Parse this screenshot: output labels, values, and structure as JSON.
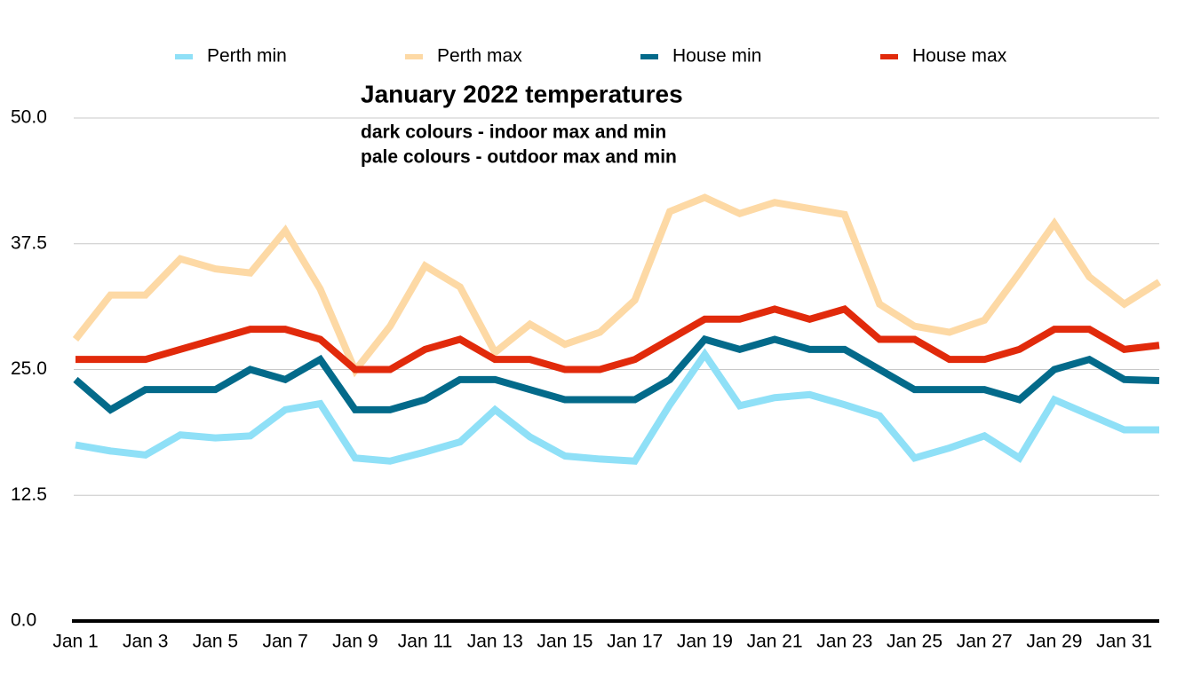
{
  "chart_data": {
    "type": "line",
    "title": "January 2022 temperatures",
    "subtitles": [
      "dark colours - indoor max and min",
      "pale colours - outdoor max and min"
    ],
    "categories": [
      "Jan 1",
      null,
      "Jan 3",
      null,
      "Jan 5",
      null,
      "Jan 7",
      null,
      "Jan 9",
      null,
      "Jan 11",
      null,
      "Jan 13",
      null,
      "Jan 15",
      null,
      "Jan 17",
      null,
      "Jan 19",
      null,
      "Jan 21",
      null,
      "Jan 23",
      null,
      "Jan 25",
      null,
      "Jan 27",
      null,
      "Jan 29",
      null,
      "Jan 31",
      null
    ],
    "series": [
      {
        "name": "Perth min",
        "color": "#8fe0f7",
        "values": [
          17.5,
          16.9,
          16.5,
          18.5,
          18.2,
          18.4,
          21,
          21.6,
          16.2,
          15.9,
          16.8,
          17.8,
          21,
          18.3,
          16.4,
          16.1,
          15.9,
          21.5,
          26.5,
          21.4,
          22.2,
          22.5,
          21.5,
          20.4,
          16.2,
          17.2,
          18.4,
          16.2,
          22,
          20.5,
          19,
          19
        ]
      },
      {
        "name": "Perth max",
        "color": "#fdd9a5",
        "values": [
          28,
          32.4,
          32.4,
          36,
          35,
          34.6,
          38.8,
          33,
          24.9,
          29.3,
          35.3,
          33.2,
          26.7,
          29.5,
          27.5,
          28.7,
          31.9,
          40.7,
          42.1,
          40.5,
          41.6,
          41,
          40.4,
          31.5,
          29.3,
          28.7,
          29.9,
          34.6,
          39.5,
          34.2,
          31.5,
          33.7
        ]
      },
      {
        "name": "House min",
        "color": "#036a8a",
        "values": [
          24,
          21,
          23,
          23,
          23,
          25,
          24,
          26,
          21,
          21,
          22,
          24,
          24,
          23,
          22,
          22,
          22,
          24,
          28,
          27,
          28,
          27,
          27,
          25,
          23,
          23,
          23,
          22,
          25,
          26,
          24,
          23.9
        ]
      },
      {
        "name": "House max",
        "color": "#e12a0b",
        "values": [
          26,
          26,
          26,
          27,
          28,
          29,
          29,
          28,
          25,
          25,
          27,
          28,
          26,
          26,
          25,
          25,
          26,
          28,
          30,
          30,
          31,
          30,
          31,
          28,
          28,
          26,
          26,
          27,
          29,
          29,
          27,
          27.4
        ]
      }
    ],
    "ylim": [
      0,
      50
    ],
    "yticks": [
      {
        "value": 0,
        "label": "0.0"
      },
      12.5,
      {
        "value": 25,
        "label": "25.0"
      },
      37.5,
      {
        "value": 50,
        "label": "50.0"
      }
    ],
    "grid": true
  }
}
